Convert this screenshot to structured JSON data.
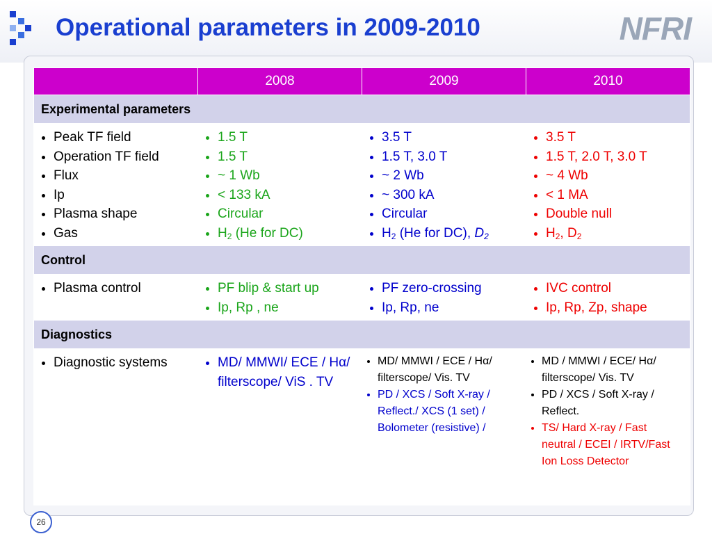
{
  "header": {
    "title": "Operational parameters in 2009-2010",
    "logo": "NFRI"
  },
  "table": {
    "columns": [
      "2008",
      "2009",
      "2010"
    ],
    "sections": [
      {
        "title": "Experimental parameters",
        "rows": [
          {
            "labels": [
              "Peak TF field",
              "Operation TF field",
              "Flux",
              "Ip",
              "Plasma shape",
              "Gas"
            ],
            "cells": [
              {
                "color": "#1aa51a",
                "items": [
                  "1.5 T",
                  "1.5 T",
                  "~ 1 Wb",
                  "< 133 kA",
                  "Circular",
                  {
                    "parts": [
                      "H",
                      {
                        "text": "2",
                        "sub": true
                      },
                      " (He for DC)"
                    ]
                  }
                ]
              },
              {
                "color": "#0000cc",
                "items": [
                  "3.5 T",
                  "1.5 T, 3.0 T",
                  "~ 2 Wb",
                  "~ 300 kA",
                  "Circular",
                  {
                    "parts": [
                      "H",
                      {
                        "text": "2",
                        "sub": true
                      },
                      " (He for DC), ",
                      {
                        "text": "D",
                        "italic": true
                      },
                      {
                        "text": "2",
                        "sub": true,
                        "italic": true
                      }
                    ]
                  }
                ]
              },
              {
                "color": "#ee0000",
                "items": [
                  "3.5 T",
                  "1.5 T, 2.0 T, 3.0 T",
                  "~ 4 Wb",
                  "< 1 MA",
                  "Double null",
                  {
                    "parts": [
                      "H",
                      {
                        "text": "2",
                        "sub": true
                      },
                      ", D",
                      {
                        "text": "2",
                        "sub": true
                      }
                    ]
                  }
                ]
              }
            ]
          }
        ]
      },
      {
        "title": "Control",
        "rows": [
          {
            "labels": [
              "Plasma control"
            ],
            "cells": [
              {
                "color": "#1aa51a",
                "items": [
                  "PF blip & start up",
                  "Ip, Rp , ne"
                ]
              },
              {
                "color": "#0000cc",
                "items": [
                  "PF zero-crossing",
                  "Ip, Rp, ne"
                ]
              },
              {
                "color": "#ee0000",
                "items": [
                  "IVC control",
                  "Ip, Rp, Zp, shape"
                ]
              }
            ]
          }
        ]
      },
      {
        "title": "Diagnostics",
        "rows": [
          {
            "labels": [
              "Diagnostic systems"
            ],
            "cells": [
              {
                "color": "#0000cc",
                "items": [
                  "MD/ MMWI/ ECE / Hα/ filterscope/ ViS . TV"
                ]
              },
              {
                "color": "#000000",
                "small": true,
                "items": [
                  "MD/ MMWI / ECE / Hα/ filterscope/  Vis. TV",
                  {
                    "text": "PD / XCS / Soft X-ray / Reflect./ XCS (1 set) / Bolometer (resistive) /",
                    "color": "#0000cc"
                  }
                ]
              },
              {
                "color": "#000000",
                "small": true,
                "items": [
                  "MD / MMWI / ECE/ Hα/ filterscope/  Vis. TV",
                  "PD / XCS / Soft X-ray / Reflect.",
                  {
                    "text": "TS/ Hard X-ray / Fast neutral / ECEI / IRTV/Fast Ion Loss Detector",
                    "color": "#ee0000"
                  }
                ]
              }
            ]
          }
        ]
      }
    ]
  },
  "page_number": "26"
}
